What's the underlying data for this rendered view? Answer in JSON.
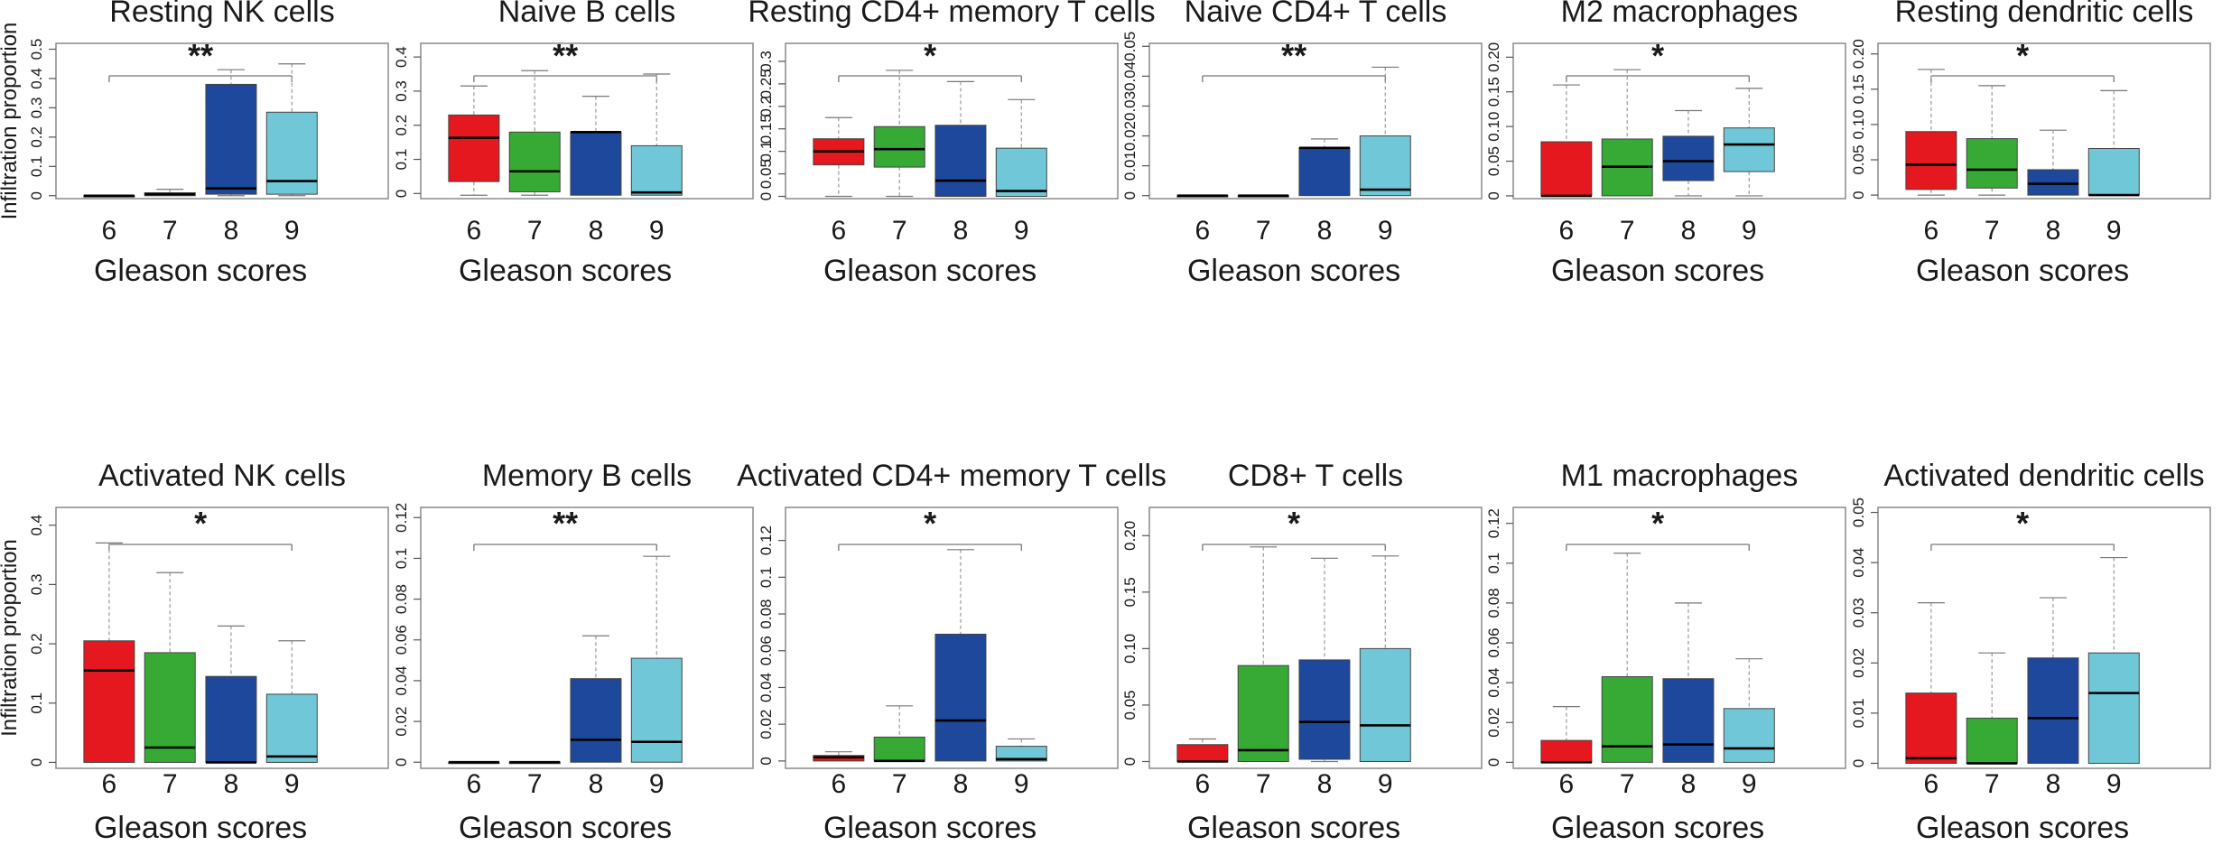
{
  "colors": {
    "g6": "#e4181e",
    "g7": "#37aa35",
    "g8": "#1d489b",
    "g9": "#70c7d8",
    "frame": "#8a8a8a",
    "whisker": "#9a9a9a"
  },
  "ylabel": "Infiltration proportion",
  "chart_data": [
    {
      "type": "box",
      "title": "Resting NK cells",
      "xlabel": "Gleason scores",
      "categories": [
        "6",
        "7",
        "8",
        "9"
      ],
      "ylim": [
        -0.01,
        0.52
      ],
      "yticks": [
        "0",
        "0.1",
        "0.2",
        "0.3",
        "0.4",
        "0.5"
      ],
      "ytick_values": [
        0,
        0.1,
        0.2,
        0.3,
        0.4,
        0.5
      ],
      "significance": "**",
      "boxes": [
        {
          "min": 0,
          "q1": 0,
          "median": 0,
          "q3": 0,
          "max": 0
        },
        {
          "min": 0,
          "q1": 0,
          "median": 0.005,
          "q3": 0.01,
          "max": 0.022
        },
        {
          "min": 0,
          "q1": 0.005,
          "median": 0.025,
          "q3": 0.38,
          "max": 0.43
        },
        {
          "min": 0,
          "q1": 0.005,
          "median": 0.05,
          "q3": 0.285,
          "max": 0.45
        }
      ]
    },
    {
      "type": "box",
      "title": "Naive B cells",
      "xlabel": "Gleason scores",
      "categories": [
        "6",
        "7",
        "8",
        "9"
      ],
      "ylim": [
        -0.015,
        0.44
      ],
      "yticks": [
        "0",
        "0.1",
        "0.2",
        "0.3",
        "0.4"
      ],
      "ytick_values": [
        0,
        0.1,
        0.2,
        0.3,
        0.4
      ],
      "significance": "**",
      "boxes": [
        {
          "min": -0.005,
          "q1": 0.035,
          "median": 0.163,
          "q3": 0.23,
          "max": 0.315
        },
        {
          "min": -0.005,
          "q1": 0.005,
          "median": 0.065,
          "q3": 0.18,
          "max": 0.36
        },
        {
          "min": -0.005,
          "q1": -0.005,
          "median": 0.18,
          "q3": 0.18,
          "max": 0.285
        },
        {
          "min": -0.005,
          "q1": -0.005,
          "median": 0.003,
          "q3": 0.14,
          "max": 0.35
        }
      ]
    },
    {
      "type": "box",
      "title": "Resting CD4+ memory T cells",
      "xlabel": "Gleason scores",
      "categories": [
        "6",
        "7",
        "8",
        "9"
      ],
      "ylim": [
        -0.005,
        0.34
      ],
      "yticks": [
        "0",
        "0.05",
        "0.1",
        "0.15",
        "0.2",
        "0.25",
        "0.3"
      ],
      "ytick_values": [
        0,
        0.05,
        0.1,
        0.15,
        0.2,
        0.25,
        0.3
      ],
      "significance": "*",
      "boxes": [
        {
          "min": 0,
          "q1": 0.07,
          "median": 0.1,
          "q3": 0.128,
          "max": 0.175
        },
        {
          "min": 0,
          "q1": 0.065,
          "median": 0.105,
          "q3": 0.155,
          "max": 0.28
        },
        {
          "min": 0,
          "q1": 0,
          "median": 0.035,
          "q3": 0.158,
          "max": 0.255
        },
        {
          "min": 0,
          "q1": 0,
          "median": 0.012,
          "q3": 0.107,
          "max": 0.215
        }
      ]
    },
    {
      "type": "box",
      "title": "Naive CD4+ T cells",
      "xlabel": "Gleason scores",
      "categories": [
        "6",
        "7",
        "8",
        "9"
      ],
      "ylim": [
        -0.001,
        0.051
      ],
      "yticks": [
        "0",
        "0.01",
        "0.02",
        "0.03",
        "0.04",
        "0.05"
      ],
      "ytick_values": [
        0,
        0.01,
        0.02,
        0.03,
        0.04,
        0.05
      ],
      "significance": "**",
      "boxes": [
        {
          "min": 0,
          "q1": 0,
          "median": 0,
          "q3": 0,
          "max": 0
        },
        {
          "min": 0,
          "q1": 0,
          "median": 0,
          "q3": 0,
          "max": 0
        },
        {
          "min": 0,
          "q1": 0,
          "median": 0.016,
          "q3": 0.016,
          "max": 0.019
        },
        {
          "min": 0,
          "q1": 0,
          "median": 0.002,
          "q3": 0.02,
          "max": 0.043
        }
      ]
    },
    {
      "type": "box",
      "title": "M2 macrophages",
      "xlabel": "Gleason scores",
      "categories": [
        "6",
        "7",
        "8",
        "9"
      ],
      "ylim": [
        -0.004,
        0.22
      ],
      "yticks": [
        "0",
        "0.05",
        "0.10",
        "0.15",
        "0.20"
      ],
      "ytick_values": [
        0,
        0.05,
        0.1,
        0.15,
        0.2
      ],
      "significance": "*",
      "boxes": [
        {
          "min": 0,
          "q1": 0,
          "median": 0,
          "q3": 0.078,
          "max": 0.16
        },
        {
          "min": 0,
          "q1": 0,
          "median": 0.042,
          "q3": 0.082,
          "max": 0.182
        },
        {
          "min": 0,
          "q1": 0.022,
          "median": 0.05,
          "q3": 0.086,
          "max": 0.123
        },
        {
          "min": 0,
          "q1": 0.035,
          "median": 0.074,
          "q3": 0.098,
          "max": 0.155
        }
      ]
    },
    {
      "type": "box",
      "title": "Resting dendritic cells",
      "xlabel": "Gleason scores",
      "categories": [
        "6",
        "7",
        "8",
        "9"
      ],
      "ylim": [
        -0.005,
        0.215
      ],
      "yticks": [
        "0",
        "0.05",
        "0.10",
        "0.15",
        "0.20"
      ],
      "ytick_values": [
        0,
        0.05,
        0.1,
        0.15,
        0.2
      ],
      "significance": "*",
      "boxes": [
        {
          "min": 0,
          "q1": 0.008,
          "median": 0.043,
          "q3": 0.09,
          "max": 0.178
        },
        {
          "min": 0,
          "q1": 0.01,
          "median": 0.036,
          "q3": 0.08,
          "max": 0.155
        },
        {
          "min": 0,
          "q1": 0,
          "median": 0.016,
          "q3": 0.036,
          "max": 0.092
        },
        {
          "min": 0,
          "q1": 0,
          "median": 0,
          "q3": 0.066,
          "max": 0.148
        }
      ]
    },
    {
      "type": "box",
      "title": "Activated NK cells",
      "xlabel": "Gleason scores",
      "categories": [
        "6",
        "7",
        "8",
        "9"
      ],
      "ylim": [
        -0.01,
        0.43
      ],
      "yticks": [
        "0",
        "0.1",
        "0.2",
        "0.3",
        "0.4"
      ],
      "ytick_values": [
        0,
        0.1,
        0.2,
        0.3,
        0.4
      ],
      "significance": "*",
      "boxes": [
        {
          "min": 0,
          "q1": 0,
          "median": 0.155,
          "q3": 0.205,
          "max": 0.37
        },
        {
          "min": 0,
          "q1": 0,
          "median": 0.025,
          "q3": 0.185,
          "max": 0.32
        },
        {
          "min": 0,
          "q1": 0,
          "median": 0,
          "q3": 0.145,
          "max": 0.23
        },
        {
          "min": 0,
          "q1": 0,
          "median": 0.01,
          "q3": 0.115,
          "max": 0.205
        }
      ]
    },
    {
      "type": "box",
      "title": "Memory B cells",
      "xlabel": "Gleason scores",
      "categories": [
        "6",
        "7",
        "8",
        "9"
      ],
      "ylim": [
        -0.003,
        0.125
      ],
      "yticks": [
        "0",
        "0.02",
        "0.04",
        "0.06",
        "0.08",
        "0.1",
        "0.12"
      ],
      "ytick_values": [
        0,
        0.02,
        0.04,
        0.06,
        0.08,
        0.1,
        0.12
      ],
      "significance": "**",
      "boxes": [
        {
          "min": 0,
          "q1": 0,
          "median": 0,
          "q3": 0,
          "max": 0
        },
        {
          "min": 0,
          "q1": 0,
          "median": 0,
          "q3": 0,
          "max": 0
        },
        {
          "min": 0,
          "q1": 0,
          "median": 0.011,
          "q3": 0.041,
          "max": 0.062
        },
        {
          "min": 0,
          "q1": 0,
          "median": 0.01,
          "q3": 0.051,
          "max": 0.101
        }
      ]
    },
    {
      "type": "box",
      "title": "Activated CD4+ memory T cells",
      "xlabel": "Gleason scores",
      "categories": [
        "6",
        "7",
        "8",
        "9"
      ],
      "ylim": [
        -0.004,
        0.138
      ],
      "yticks": [
        "0",
        "0.02",
        "0.04",
        "0.06",
        "0.08",
        "0.1",
        "0.12"
      ],
      "ytick_values": [
        0,
        0.02,
        0.04,
        0.06,
        0.08,
        0.1,
        0.12
      ],
      "significance": "*",
      "boxes": [
        {
          "min": 0,
          "q1": 0,
          "median": 0.002,
          "q3": 0.003,
          "max": 0.005
        },
        {
          "min": 0,
          "q1": 0,
          "median": 0,
          "q3": 0.013,
          "max": 0.03
        },
        {
          "min": 0,
          "q1": 0,
          "median": 0.022,
          "q3": 0.069,
          "max": 0.115
        },
        {
          "min": 0,
          "q1": 0,
          "median": 0.001,
          "q3": 0.008,
          "max": 0.012
        }
      ]
    },
    {
      "type": "box",
      "title": "CD8+ T cells",
      "xlabel": "Gleason scores",
      "categories": [
        "6",
        "7",
        "8",
        "9"
      ],
      "ylim": [
        -0.006,
        0.225
      ],
      "yticks": [
        "0",
        "0.05",
        "0.10",
        "0.15",
        "0.20"
      ],
      "ytick_values": [
        0,
        0.05,
        0.1,
        0.15,
        0.2
      ],
      "significance": "*",
      "boxes": [
        {
          "min": 0,
          "q1": 0,
          "median": 0,
          "q3": 0.015,
          "max": 0.02
        },
        {
          "min": 0,
          "q1": 0,
          "median": 0.01,
          "q3": 0.085,
          "max": 0.19
        },
        {
          "min": 0,
          "q1": 0.002,
          "median": 0.035,
          "q3": 0.09,
          "max": 0.18
        },
        {
          "min": 0,
          "q1": 0,
          "median": 0.032,
          "q3": 0.1,
          "max": 0.182
        }
      ]
    },
    {
      "type": "box",
      "title": "M1 macrophages",
      "xlabel": "Gleason scores",
      "categories": [
        "6",
        "7",
        "8",
        "9"
      ],
      "ylim": [
        -0.003,
        0.128
      ],
      "yticks": [
        "0",
        "0.02",
        "0.04",
        "0.06",
        "0.08",
        "0.1",
        "0.12"
      ],
      "ytick_values": [
        0,
        0.02,
        0.04,
        0.06,
        0.08,
        0.1,
        0.12
      ],
      "significance": "*",
      "boxes": [
        {
          "min": 0,
          "q1": 0,
          "median": 0,
          "q3": 0.011,
          "max": 0.028
        },
        {
          "min": 0,
          "q1": 0,
          "median": 0.008,
          "q3": 0.043,
          "max": 0.105
        },
        {
          "min": 0,
          "q1": 0,
          "median": 0.009,
          "q3": 0.042,
          "max": 0.08
        },
        {
          "min": 0,
          "q1": 0,
          "median": 0.007,
          "q3": 0.027,
          "max": 0.052
        }
      ]
    },
    {
      "type": "box",
      "title": "Activated dendritic cells",
      "xlabel": "Gleason scores",
      "categories": [
        "6",
        "7",
        "8",
        "9"
      ],
      "ylim": [
        -0.001,
        0.051
      ],
      "yticks": [
        "0",
        "0.01",
        "0.02",
        "0.03",
        "0.04",
        "0.05"
      ],
      "ytick_values": [
        0,
        0.01,
        0.02,
        0.03,
        0.04,
        0.05
      ],
      "significance": "*",
      "boxes": [
        {
          "min": 0,
          "q1": 0,
          "median": 0.001,
          "q3": 0.014,
          "max": 0.032
        },
        {
          "min": 0,
          "q1": 0,
          "median": 0,
          "q3": 0.009,
          "max": 0.022
        },
        {
          "min": 0,
          "q1": 0,
          "median": 0.009,
          "q3": 0.021,
          "max": 0.033
        },
        {
          "min": 0,
          "q1": 0,
          "median": 0.014,
          "q3": 0.022,
          "max": 0.041
        }
      ]
    }
  ]
}
